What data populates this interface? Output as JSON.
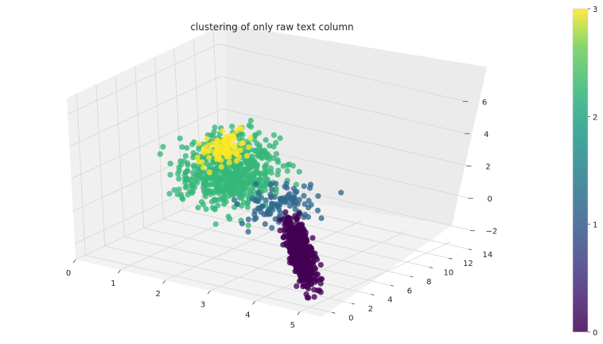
{
  "chart_data": {
    "type": "scatter",
    "title": "clustering of only raw text column",
    "projection": "3d",
    "x_ticks": [
      "0",
      "1",
      "2",
      "3",
      "4",
      "5"
    ],
    "y_ticks": [
      "0",
      "2",
      "4",
      "6",
      "8",
      "10",
      "12",
      "14"
    ],
    "z_ticks": [
      "−2",
      "0",
      "2",
      "4",
      "6"
    ],
    "xlim": [
      0,
      5.5
    ],
    "ylim": [
      -1,
      14.5
    ],
    "zlim": [
      -3,
      7
    ],
    "colorbar": {
      "ticks": [
        "0",
        "1",
        "2",
        "3"
      ],
      "min": 0,
      "max": 3,
      "colormap": "viridis"
    },
    "clusters": [
      {
        "label": 0,
        "color": "#440154",
        "x_range": [
          1.6,
          5.2
        ],
        "y_range": [
          0,
          13
        ],
        "z_range": [
          -3.2,
          -1.8
        ]
      },
      {
        "label": 1,
        "color": "#31688e",
        "x_range": [
          1.8,
          3.8
        ],
        "y_range": [
          3,
          12
        ],
        "z_range": [
          -1.6,
          1.2
        ]
      },
      {
        "label": 2,
        "color": "#35b779",
        "x_range": [
          0.1,
          2.6
        ],
        "y_range": [
          4,
          14
        ],
        "z_range": [
          -2.5,
          3.5
        ]
      },
      {
        "label": 3,
        "color": "#fde725",
        "x_range": [
          0.4,
          1.4
        ],
        "y_range": [
          8,
          13
        ],
        "z_range": [
          0,
          2.5
        ]
      }
    ]
  }
}
